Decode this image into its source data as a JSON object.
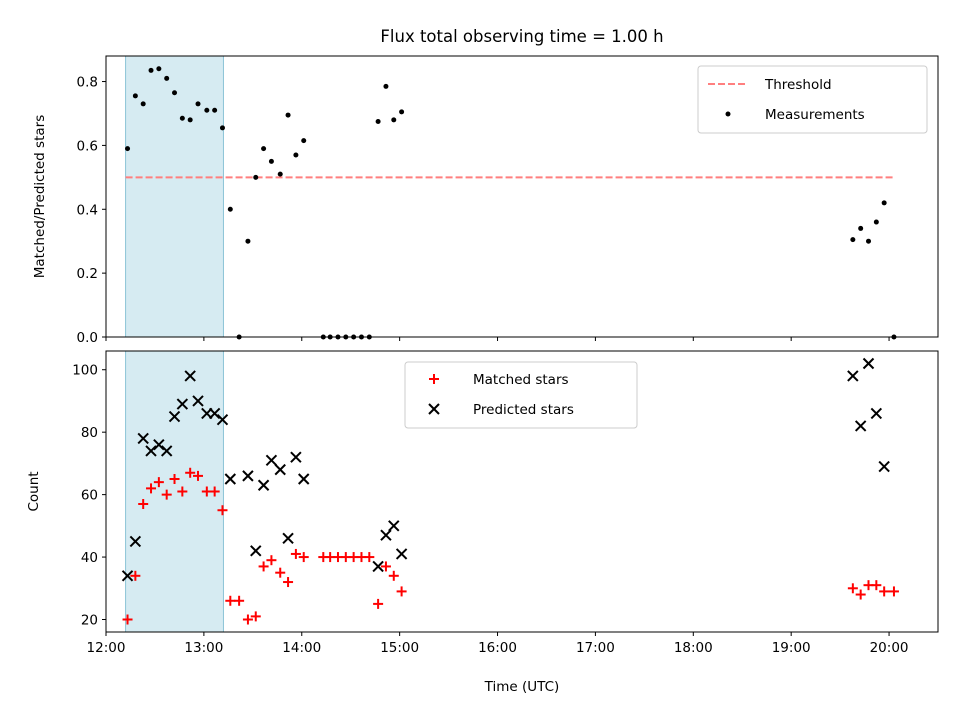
{
  "chart_data": [
    {
      "type": "scatter",
      "title": "Flux total observing time = 1.00 h",
      "xlabel": "",
      "ylabel": "Matched/Predicted stars",
      "xlim": [
        12.0,
        20.5
      ],
      "ylim": [
        0.0,
        0.88
      ],
      "yticks": [
        0.0,
        0.2,
        0.4,
        0.6,
        0.8
      ],
      "ytick_labels": [
        "0.0",
        "0.2",
        "0.4",
        "0.6",
        "0.8"
      ],
      "xticks": [
        12,
        13,
        14,
        15,
        16,
        17,
        18,
        19,
        20
      ],
      "shaded_span": {
        "x0": 12.2,
        "x1": 13.2,
        "color": "#add8e6"
      },
      "legend_position": "upper right",
      "threshold": {
        "name": "Threshold",
        "y": 0.5,
        "x": [
          12.2,
          20.05
        ],
        "color": "#ff7f7f",
        "style": "dashed"
      },
      "series": [
        {
          "name": "Measurements",
          "marker": "dot",
          "color": "#000000",
          "x": [
            12.22,
            12.3,
            12.38,
            12.46,
            12.54,
            12.62,
            12.7,
            12.78,
            12.86,
            12.94,
            13.03,
            13.11,
            13.19,
            13.27,
            13.36,
            13.45,
            13.53,
            13.61,
            13.69,
            13.78,
            13.86,
            13.94,
            14.02,
            14.22,
            14.29,
            14.37,
            14.45,
            14.53,
            14.61,
            14.69,
            14.78,
            14.86,
            14.94,
            15.02,
            19.63,
            19.71,
            19.79,
            19.87,
            19.95,
            20.05
          ],
          "y": [
            0.59,
            0.755,
            0.73,
            0.835,
            0.84,
            0.81,
            0.765,
            0.685,
            0.68,
            0.73,
            0.71,
            0.71,
            0.655,
            0.4,
            0.0,
            0.3,
            0.5,
            0.59,
            0.55,
            0.51,
            0.695,
            0.57,
            0.615,
            0.0,
            0.0,
            0.0,
            0.0,
            0.0,
            0.0,
            0.0,
            0.675,
            0.785,
            0.68,
            0.705,
            0.305,
            0.34,
            0.3,
            0.36,
            0.42,
            0.0
          ]
        }
      ]
    },
    {
      "type": "scatter",
      "title": "",
      "xlabel": "Time (UTC)",
      "ylabel": "Count",
      "xlim": [
        12.0,
        20.5
      ],
      "ylim": [
        16,
        106
      ],
      "yticks": [
        20,
        40,
        60,
        80,
        100
      ],
      "ytick_labels": [
        "20",
        "40",
        "60",
        "80",
        "100"
      ],
      "xticks": [
        12,
        13,
        14,
        15,
        16,
        17,
        18,
        19,
        20
      ],
      "xtick_labels": [
        "12:00",
        "13:00",
        "14:00",
        "15:00",
        "16:00",
        "17:00",
        "18:00",
        "19:00",
        "20:00"
      ],
      "shaded_span": {
        "x0": 12.2,
        "x1": 13.2,
        "color": "#add8e6"
      },
      "legend_position": "upper center",
      "series": [
        {
          "name": "Matched stars",
          "marker": "plus",
          "color": "#ff0000",
          "x": [
            12.22,
            12.3,
            12.38,
            12.46,
            12.54,
            12.62,
            12.7,
            12.78,
            12.86,
            12.94,
            13.03,
            13.11,
            13.19,
            13.27,
            13.36,
            13.45,
            13.53,
            13.61,
            13.69,
            13.78,
            13.86,
            13.94,
            14.02,
            14.22,
            14.29,
            14.37,
            14.45,
            14.53,
            14.61,
            14.69,
            14.78,
            14.86,
            14.94,
            15.02,
            19.63,
            19.71,
            19.79,
            19.87,
            19.95,
            20.05
          ],
          "y": [
            20,
            34,
            57,
            62,
            64,
            60,
            65,
            61,
            67,
            66,
            61,
            61,
            55,
            26,
            26,
            20,
            21,
            37,
            39,
            35,
            32,
            41,
            40,
            40,
            40,
            40,
            40,
            40,
            40,
            40,
            25,
            37,
            34,
            29,
            30,
            28,
            31,
            31,
            29,
            29
          ]
        },
        {
          "name": "Predicted stars",
          "marker": "x",
          "color": "#000000",
          "x": [
            12.22,
            12.3,
            12.38,
            12.46,
            12.54,
            12.62,
            12.7,
            12.78,
            12.86,
            12.94,
            13.03,
            13.11,
            13.19,
            13.27,
            13.45,
            13.53,
            13.61,
            13.69,
            13.78,
            13.86,
            13.94,
            14.02,
            14.78,
            14.86,
            14.94,
            15.02,
            19.63,
            19.71,
            19.79,
            19.87,
            19.95
          ],
          "y": [
            34,
            45,
            78,
            74,
            76,
            74,
            85,
            89,
            98,
            90,
            86,
            86,
            84,
            65,
            66,
            42,
            63,
            71,
            68,
            46,
            72,
            65,
            37,
            47,
            50,
            41,
            98,
            82,
            102,
            86,
            69
          ]
        }
      ]
    }
  ]
}
